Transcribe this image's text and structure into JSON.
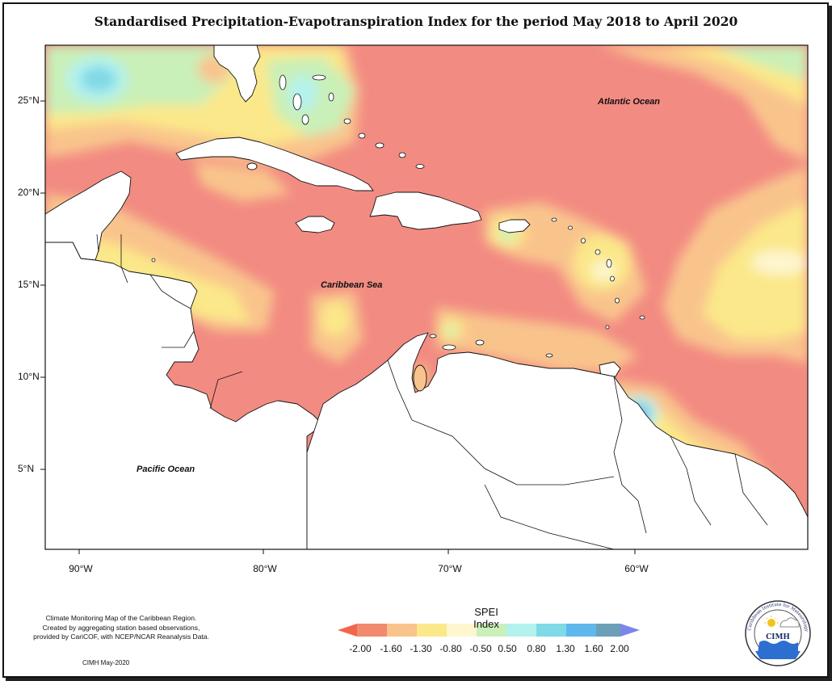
{
  "title": "Standardised Precipitation-Evapotranspiration Index for the period May 2018 to April 2020",
  "ocean_labels": {
    "atlantic": "Atlantic Ocean",
    "caribbean": "Caribbean Sea",
    "pacific": "Pacific Ocean"
  },
  "lat_labels": [
    "25°N",
    "20°N",
    "15°N",
    "10°N",
    "5°N"
  ],
  "lon_labels": [
    "90°W",
    "80°W",
    "70°W",
    "60°W"
  ],
  "legend": {
    "title": "SPEI Index",
    "ticks": [
      "-2.00",
      "-1.60",
      "-1.30",
      "-0.80",
      "-0.50",
      "0.50",
      "0.80",
      "1.30",
      "1.60",
      "2.00"
    ],
    "colors": [
      "#f2664c",
      "#f28a70",
      "#f9c48c",
      "#fbe88a",
      "#fdf6cf",
      "#c9f0b8",
      "#b4f2ee",
      "#7fd9e6",
      "#5fb8ec",
      "#6ba0b8",
      "#7a86e8"
    ]
  },
  "credits": {
    "line1": "Climate Monitoring Map of the Caribbean Region.",
    "line2": "Created by aggregating station based observations,",
    "line3": "provided by CariCOF, with NCEP/NCAR Reanalysis Data.",
    "date": "CIMH May-2020"
  },
  "logo": {
    "name": "CIMH",
    "ring_text": "Caribbean Institute for Meteorology and Hydrology"
  }
}
